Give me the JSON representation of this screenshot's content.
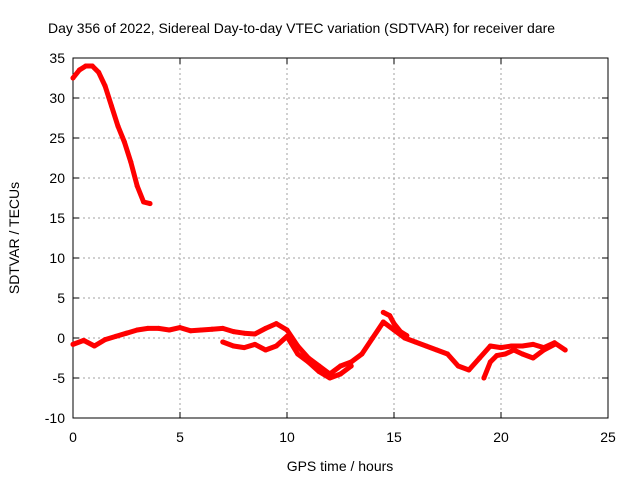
{
  "chart_data": {
    "type": "scatter",
    "title": "Day 356 of 2022, Sidereal Day-to-day VTEC variation (SDTVAR) for receiver dare",
    "xlabel": "GPS time / hours",
    "ylabel": "SDTVAR / TECUs",
    "xlim": [
      0,
      25
    ],
    "ylim": [
      -10,
      35
    ],
    "xticks": [
      0,
      5,
      10,
      15,
      20,
      25
    ],
    "yticks": [
      -10,
      -5,
      0,
      5,
      10,
      15,
      20,
      25,
      30,
      35
    ],
    "grid": true,
    "series": [
      {
        "name": "SDTVAR",
        "color": "#ff0000",
        "segments": [
          {
            "x": [
              0.0,
              0.3,
              0.6,
              0.9,
              1.2,
              1.5,
              1.8,
              2.1,
              2.4,
              2.7,
              3.0,
              3.3,
              3.6
            ],
            "y": [
              32.5,
              33.5,
              34.0,
              34.0,
              33.2,
              31.5,
              29.0,
              26.5,
              24.5,
              22.0,
              19.0,
              17.0,
              16.8
            ]
          },
          {
            "x": [
              0.0,
              0.5,
              1.0,
              1.5,
              2.0,
              2.5,
              3.0,
              3.5,
              4.0,
              4.5,
              5.0,
              5.5,
              6.0,
              6.5,
              7.0,
              7.5,
              8.0,
              8.5,
              9.0,
              9.5,
              10.0,
              10.5,
              11.0,
              11.5,
              12.0,
              12.5,
              13.0,
              13.5,
              14.0,
              14.5,
              15.0,
              15.5,
              16.0,
              16.5,
              17.0,
              17.5,
              18.0,
              18.5,
              19.0,
              19.5,
              20.0,
              20.5,
              21.0,
              21.5,
              22.0,
              22.5,
              23.0
            ],
            "y": [
              -0.8,
              -0.3,
              -1.0,
              -0.2,
              0.2,
              0.6,
              1.0,
              1.2,
              1.2,
              1.0,
              1.3,
              0.9,
              1.0,
              1.1,
              1.2,
              0.8,
              0.6,
              0.5,
              1.2,
              1.8,
              1.0,
              -1.0,
              -2.5,
              -3.5,
              -4.5,
              -3.5,
              -3.0,
              -2.0,
              0.0,
              2.0,
              1.0,
              0.0,
              -0.5,
              -1.0,
              -1.5,
              -2.0,
              -3.5,
              -4.0,
              -2.5,
              -1.0,
              -1.2,
              -1.0,
              -1.0,
              -0.8,
              -1.2,
              -0.6,
              -1.5
            ]
          },
          {
            "x": [
              7.0,
              7.5,
              8.0,
              8.5,
              9.0,
              9.5,
              10.0,
              10.5,
              11.0,
              11.5,
              12.0,
              12.5,
              13.0
            ],
            "y": [
              -0.5,
              -1.0,
              -1.2,
              -0.8,
              -1.5,
              -1.0,
              0.2,
              -2.0,
              -3.0,
              -4.2,
              -5.0,
              -4.5,
              -3.5
            ]
          },
          {
            "x": [
              14.5,
              14.8,
              15.0,
              15.3,
              15.6
            ],
            "y": [
              3.2,
              2.8,
              1.8,
              0.8,
              0.3
            ]
          },
          {
            "x": [
              19.2,
              19.5,
              19.8,
              20.2,
              20.6,
              21.0,
              21.5,
              22.0,
              22.5
            ],
            "y": [
              -5.0,
              -3.0,
              -2.2,
              -2.0,
              -1.5,
              -2.0,
              -2.5,
              -1.5,
              -0.8
            ]
          }
        ]
      }
    ]
  }
}
